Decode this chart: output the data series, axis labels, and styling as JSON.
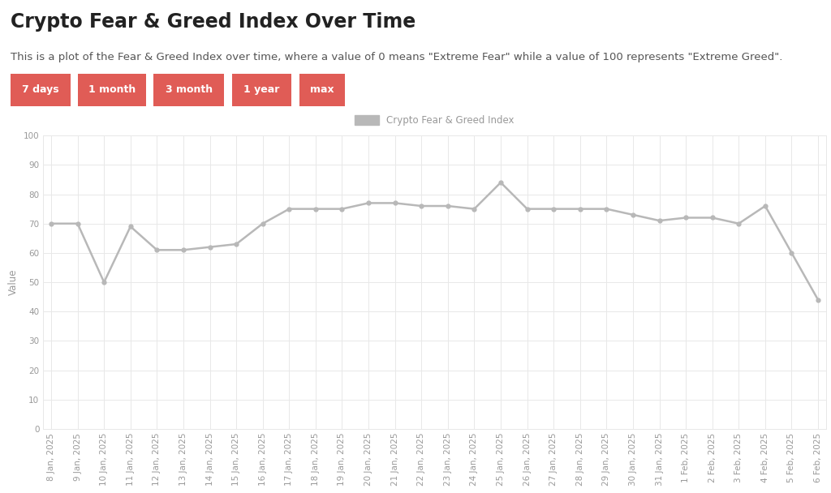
{
  "title": "Crypto Fear & Greed Index Over Time",
  "subtitle": "This is a plot of the Fear & Greed Index over time, where a value of 0 means \"Extreme Fear\" while a value of 100 represents \"Extreme Greed\".",
  "legend_label": "Crypto Fear & Greed Index",
  "ylabel": "Value",
  "ylim": [
    0,
    100
  ],
  "yticks": [
    0,
    10,
    20,
    30,
    40,
    50,
    60,
    70,
    80,
    90,
    100
  ],
  "buttons": [
    "7 days",
    "1 month",
    "3 month",
    "1 year",
    "max"
  ],
  "button_color": "#e05c56",
  "button_text_color": "#ffffff",
  "line_color": "#b8b8b8",
  "marker_color": "#b8b8b8",
  "background_color": "#ffffff",
  "grid_color": "#e8e8e8",
  "tick_color": "#999999",
  "title_color": "#222222",
  "subtitle_color": "#555555",
  "dates": [
    "8 Jan, 2025",
    "9 Jan, 2025",
    "10 Jan, 2025",
    "11 Jan, 2025",
    "12 Jan, 2025",
    "13 Jan, 2025",
    "14 Jan, 2025",
    "15 Jan, 2025",
    "16 Jan, 2025",
    "17 Jan, 2025",
    "18 Jan, 2025",
    "19 Jan, 2025",
    "20 Jan, 2025",
    "21 Jan, 2025",
    "22 Jan, 2025",
    "23 Jan, 2025",
    "24 Jan, 2025",
    "25 Jan, 2025",
    "26 Jan, 2025",
    "27 Jan, 2025",
    "28 Jan, 2025",
    "29 Jan, 2025",
    "30 Jan, 2025",
    "31 Jan, 2025",
    "1 Feb, 2025",
    "2 Feb, 2025",
    "3 Feb, 2025",
    "4 Feb, 2025",
    "5 Feb, 2025",
    "6 Feb, 2025"
  ],
  "values": [
    70,
    70,
    50,
    69,
    61,
    61,
    62,
    63,
    70,
    75,
    75,
    75,
    77,
    77,
    76,
    76,
    75,
    84,
    75,
    75,
    75,
    75,
    73,
    71,
    72,
    72,
    70,
    76,
    60,
    44
  ],
  "title_fontsize": 17,
  "subtitle_fontsize": 9.5,
  "axis_label_fontsize": 8.5,
  "tick_fontsize": 7.5,
  "legend_fontsize": 8.5,
  "button_fontsize": 9
}
